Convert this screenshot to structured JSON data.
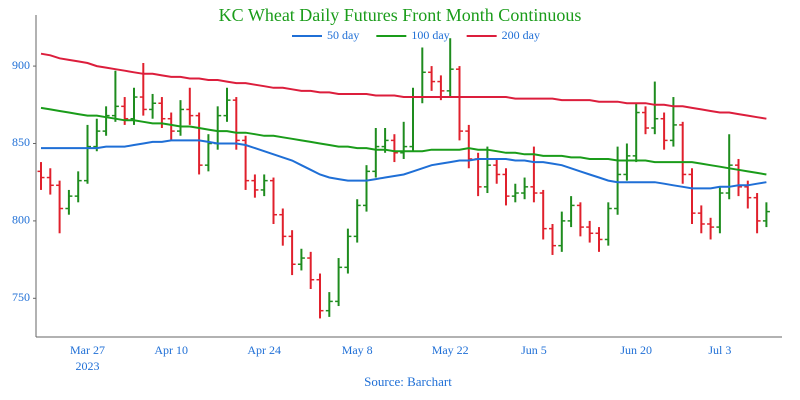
{
  "chart_data": {
    "type": "ohlc",
    "title": "KC Wheat Daily Futures Front Month Continuous",
    "source": "Source: Barchart",
    "x_axis_year": "2023",
    "categories": [
      null,
      null,
      null,
      null,
      null,
      "Mar 27",
      null,
      null,
      null,
      null,
      null,
      null,
      null,
      null,
      "Apr 10",
      null,
      null,
      null,
      null,
      null,
      null,
      null,
      null,
      null,
      "Apr 24",
      null,
      null,
      null,
      null,
      null,
      null,
      null,
      null,
      null,
      "May 8",
      null,
      null,
      null,
      null,
      null,
      null,
      null,
      null,
      null,
      "May 22",
      null,
      null,
      null,
      null,
      null,
      null,
      null,
      null,
      "Jun 5",
      null,
      null,
      null,
      null,
      null,
      null,
      null,
      null,
      null,
      null,
      "Jun 20",
      null,
      null,
      null,
      null,
      null,
      null,
      null,
      null,
      "Jul 3",
      null,
      null,
      null,
      null,
      null,
      null
    ],
    "ohlc": {
      "open": [
        832,
        828,
        823,
        808,
        816,
        826,
        848,
        858,
        868,
        874,
        866,
        880,
        872,
        876,
        866,
        858,
        872,
        868,
        836,
        850,
        868,
        878,
        852,
        826,
        820,
        826,
        804,
        790,
        772,
        776,
        762,
        742,
        748,
        770,
        790,
        810,
        832,
        848,
        852,
        844,
        848,
        880,
        896,
        890,
        884,
        898,
        858,
        840,
        822,
        836,
        830,
        816,
        818,
        822,
        818,
        795,
        784,
        800,
        810,
        796,
        792,
        788,
        808,
        830,
        842,
        870,
        860,
        866,
        852,
        862,
        830,
        805,
        798,
        796,
        818,
        836,
        822,
        815,
        800
      ],
      "high": [
        838,
        834,
        826,
        820,
        832,
        862,
        866,
        874,
        897,
        880,
        886,
        902,
        882,
        880,
        870,
        878,
        886,
        870,
        856,
        874,
        886,
        880,
        855,
        830,
        830,
        828,
        808,
        794,
        782,
        780,
        766,
        754,
        776,
        795,
        814,
        836,
        860,
        860,
        856,
        864,
        886,
        912,
        900,
        894,
        918,
        900,
        862,
        844,
        848,
        840,
        834,
        824,
        828,
        848,
        820,
        798,
        806,
        816,
        812,
        800,
        796,
        812,
        848,
        850,
        876,
        874,
        890,
        870,
        880,
        864,
        834,
        810,
        802,
        822,
        856,
        840,
        826,
        818,
        812
      ],
      "low": [
        820,
        817,
        792,
        804,
        812,
        824,
        845,
        855,
        864,
        862,
        862,
        868,
        866,
        860,
        852,
        855,
        862,
        830,
        832,
        846,
        864,
        846,
        820,
        815,
        816,
        798,
        784,
        765,
        768,
        756,
        737,
        738,
        745,
        766,
        786,
        806,
        828,
        844,
        838,
        840,
        845,
        876,
        884,
        878,
        880,
        852,
        834,
        816,
        818,
        824,
        810,
        812,
        814,
        812,
        788,
        778,
        780,
        796,
        790,
        786,
        780,
        784,
        804,
        826,
        838,
        856,
        856,
        846,
        848,
        824,
        798,
        792,
        788,
        792,
        814,
        816,
        808,
        792,
        796
      ],
      "close": [
        828,
        823,
        808,
        816,
        826,
        848,
        858,
        868,
        874,
        866,
        880,
        872,
        876,
        866,
        858,
        872,
        868,
        836,
        850,
        868,
        878,
        852,
        826,
        820,
        826,
        804,
        790,
        772,
        776,
        762,
        742,
        748,
        770,
        790,
        810,
        832,
        848,
        852,
        844,
        848,
        880,
        896,
        890,
        884,
        898,
        858,
        840,
        822,
        836,
        830,
        816,
        818,
        822,
        818,
        795,
        784,
        800,
        810,
        796,
        792,
        788,
        808,
        830,
        842,
        870,
        860,
        866,
        852,
        862,
        830,
        805,
        798,
        796,
        818,
        836,
        822,
        815,
        800,
        806
      ]
    },
    "up_color": "#1e8c1e",
    "down_color": "#e0202c",
    "moving_averages": [
      {
        "name": "50 day",
        "color": "#1f6fd6",
        "values": [
          847,
          847,
          847,
          847,
          847,
          847,
          847,
          848,
          848,
          848,
          849,
          850,
          851,
          851,
          852,
          852,
          852,
          852,
          851,
          850,
          850,
          850,
          849,
          847,
          845,
          843,
          841,
          839,
          836,
          833,
          830,
          828,
          827,
          826,
          826,
          826,
          827,
          828,
          829,
          830,
          832,
          834,
          836,
          837,
          838,
          839,
          839,
          840,
          840,
          840,
          840,
          839,
          839,
          838,
          838,
          837,
          836,
          834,
          832,
          830,
          828,
          826,
          825,
          825,
          825,
          825,
          825,
          824,
          823,
          822,
          821,
          821,
          821,
          822,
          822,
          823,
          823,
          824,
          825
        ]
      },
      {
        "name": "100 day",
        "color": "#1a9c1a",
        "values": [
          873,
          872,
          871,
          870,
          869,
          868,
          868,
          867,
          866,
          865,
          865,
          864,
          863,
          863,
          862,
          861,
          861,
          860,
          859,
          858,
          858,
          857,
          857,
          856,
          855,
          855,
          854,
          853,
          852,
          851,
          850,
          849,
          848,
          848,
          847,
          847,
          846,
          846,
          845,
          845,
          845,
          845,
          846,
          846,
          846,
          846,
          847,
          846,
          846,
          845,
          844,
          844,
          843,
          843,
          842,
          842,
          842,
          841,
          841,
          840,
          840,
          840,
          839,
          839,
          839,
          839,
          838,
          838,
          838,
          838,
          838,
          837,
          836,
          835,
          834,
          833,
          832,
          831,
          830
        ]
      },
      {
        "name": "200 day",
        "color": "#dc1e3c",
        "values": [
          908,
          907,
          905,
          904,
          903,
          902,
          900,
          899,
          898,
          897,
          896,
          895,
          895,
          894,
          893,
          893,
          892,
          892,
          891,
          891,
          890,
          889,
          889,
          888,
          887,
          886,
          886,
          885,
          884,
          884,
          883,
          883,
          882,
          882,
          882,
          882,
          881,
          881,
          881,
          880,
          880,
          880,
          880,
          880,
          880,
          880,
          880,
          880,
          880,
          880,
          880,
          879,
          879,
          879,
          879,
          879,
          878,
          878,
          878,
          878,
          877,
          877,
          877,
          876,
          876,
          876,
          875,
          875,
          874,
          874,
          873,
          872,
          871,
          870,
          870,
          869,
          868,
          867,
          866
        ]
      }
    ],
    "ylim": [
      725,
      933
    ],
    "yticks": [
      750,
      800,
      850,
      900
    ],
    "grid": false
  }
}
